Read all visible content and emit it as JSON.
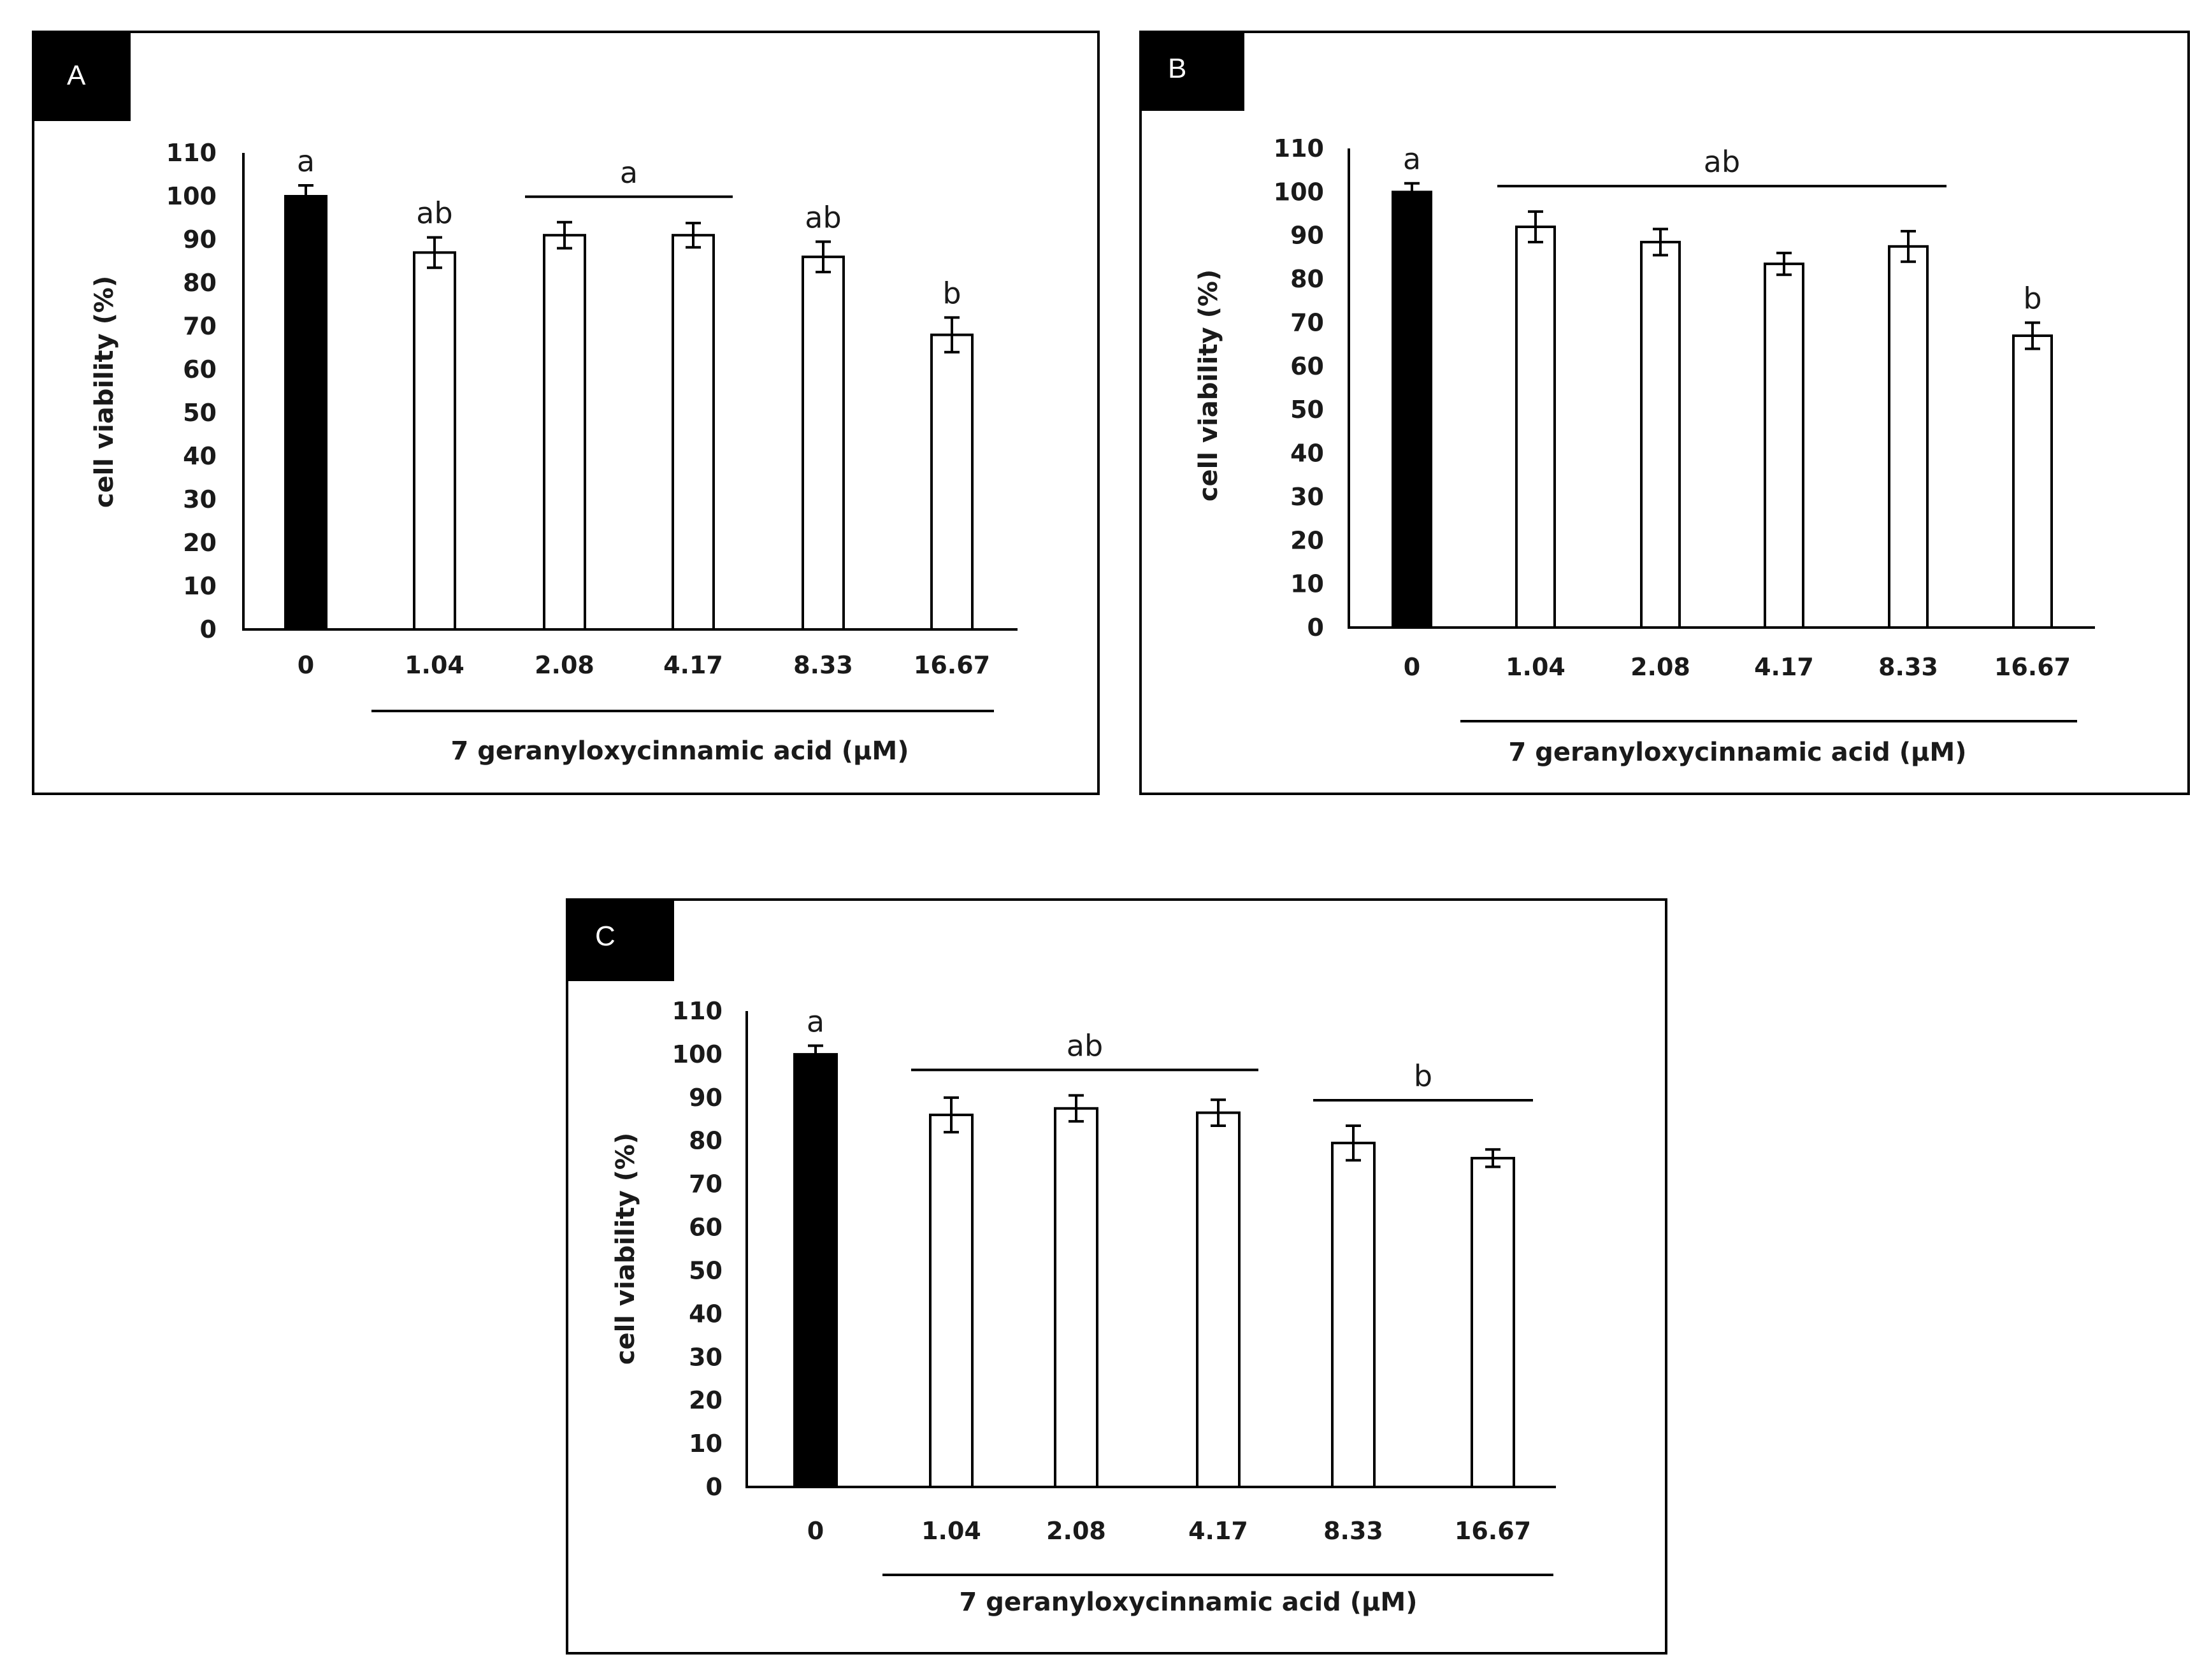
{
  "chart_data": [
    {
      "type": "bar",
      "panel": "A",
      "categories": [
        "0",
        "1.04",
        "2.08",
        "4.17",
        "8.33",
        "16.67"
      ],
      "values": [
        100,
        87,
        91,
        91,
        86,
        68
      ],
      "errors": [
        2.5,
        3.5,
        3,
        2.8,
        3.5,
        4
      ],
      "fills": [
        "#000000",
        "#ffffff",
        "#ffffff",
        "#ffffff",
        "#ffffff",
        "#ffffff"
      ],
      "ylabel": "cell viability (%)",
      "xlabel": "7 geranyloxycinnamic acid (μM)",
      "ylim": [
        0,
        110
      ],
      "yticks": [
        "0",
        "10",
        "20",
        "30",
        "40",
        "50",
        "60",
        "70",
        "80",
        "90",
        "100",
        "110"
      ],
      "letters": [
        {
          "text": "a",
          "from": 0,
          "to": 0,
          "bar": false
        },
        {
          "text": "ab",
          "from": 1,
          "to": 1,
          "bar": false
        },
        {
          "text": "a",
          "from": 2,
          "to": 3,
          "bar": true
        },
        {
          "text": "ab",
          "from": 4,
          "to": 4,
          "bar": false
        },
        {
          "text": "b",
          "from": 5,
          "to": 5,
          "bar": false
        }
      ]
    },
    {
      "type": "bar",
      "panel": "B",
      "categories": [
        "0",
        "1.04",
        "2.08",
        "4.17",
        "8.33",
        "16.67"
      ],
      "values": [
        100,
        92,
        88.5,
        83.5,
        87.5,
        67
      ],
      "errors": [
        2,
        3.5,
        3,
        2.5,
        3.5,
        3
      ],
      "fills": [
        "#000000",
        "#ffffff",
        "#ffffff",
        "#ffffff",
        "#ffffff",
        "#ffffff"
      ],
      "ylabel": "cell viability (%)",
      "xlabel": "7 geranyloxycinnamic acid (μM)",
      "ylim": [
        0,
        110
      ],
      "yticks": [
        "0",
        "10",
        "20",
        "30",
        "40",
        "50",
        "60",
        "70",
        "80",
        "90",
        "100",
        "110"
      ],
      "letters": [
        {
          "text": "a",
          "from": 0,
          "to": 0,
          "bar": false
        },
        {
          "text": "ab",
          "from": 1,
          "to": 4,
          "bar": true
        },
        {
          "text": "b",
          "from": 5,
          "to": 5,
          "bar": false
        }
      ]
    },
    {
      "type": "bar",
      "panel": "C",
      "categories": [
        "0",
        "1.04",
        "2.08",
        "4.17",
        "8.33",
        "16.67"
      ],
      "values": [
        100,
        86,
        87.5,
        86.5,
        79.5,
        76
      ],
      "errors": [
        2,
        4,
        3,
        3,
        4,
        2
      ],
      "fills": [
        "#000000",
        "#ffffff",
        "#ffffff",
        "#ffffff",
        "#ffffff",
        "#ffffff"
      ],
      "ylabel": "cell viability (%)",
      "xlabel": "7 geranyloxycinnamic acid (μM)",
      "ylim": [
        0,
        110
      ],
      "yticks": [
        "0",
        "10",
        "20",
        "30",
        "40",
        "50",
        "60",
        "70",
        "80",
        "90",
        "100",
        "110"
      ],
      "letters": [
        {
          "text": "a",
          "from": 0,
          "to": 0,
          "bar": false
        },
        {
          "text": "ab",
          "from": 1,
          "to": 3,
          "bar": true
        },
        {
          "text": "b",
          "from": 4,
          "to": 5,
          "bar": true
        }
      ]
    }
  ]
}
